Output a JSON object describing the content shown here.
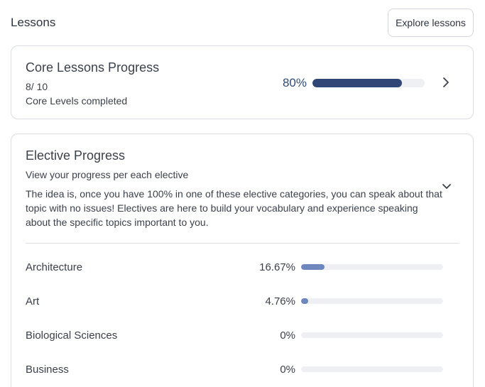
{
  "header": {
    "title": "Lessons",
    "explore_label": "Explore lessons"
  },
  "core": {
    "title": "Core Lessons Progress",
    "count": "8/ 10",
    "subtitle": "Core Levels completed",
    "percent_label": "80%",
    "progress": 0.8
  },
  "elective": {
    "title": "Elective Progress",
    "subtitle": "View your progress per each elective",
    "description": "The idea is, once you have 100% in one of these elective categories, you can speak about that topic with no issues! Electives are here to build your vocabulary and experience speaking about the specific topics important to you.",
    "items": [
      {
        "name": "Architecture",
        "percent_label": "16.67%",
        "progress": 0.1667
      },
      {
        "name": "Art",
        "percent_label": "4.76%",
        "progress": 0.0476
      },
      {
        "name": "Biological Sciences",
        "percent_label": "0%",
        "progress": 0
      },
      {
        "name": "Business",
        "percent_label": "0%",
        "progress": 0
      }
    ]
  },
  "colors": {
    "core_bar": "#2f4677",
    "elective_bar": "#6f87bf",
    "track": "#eef0f4",
    "accent_text": "#2f4a78"
  },
  "icons": {
    "core_expand": "chevron-right-icon",
    "elective_toggle": "chevron-down-icon"
  }
}
